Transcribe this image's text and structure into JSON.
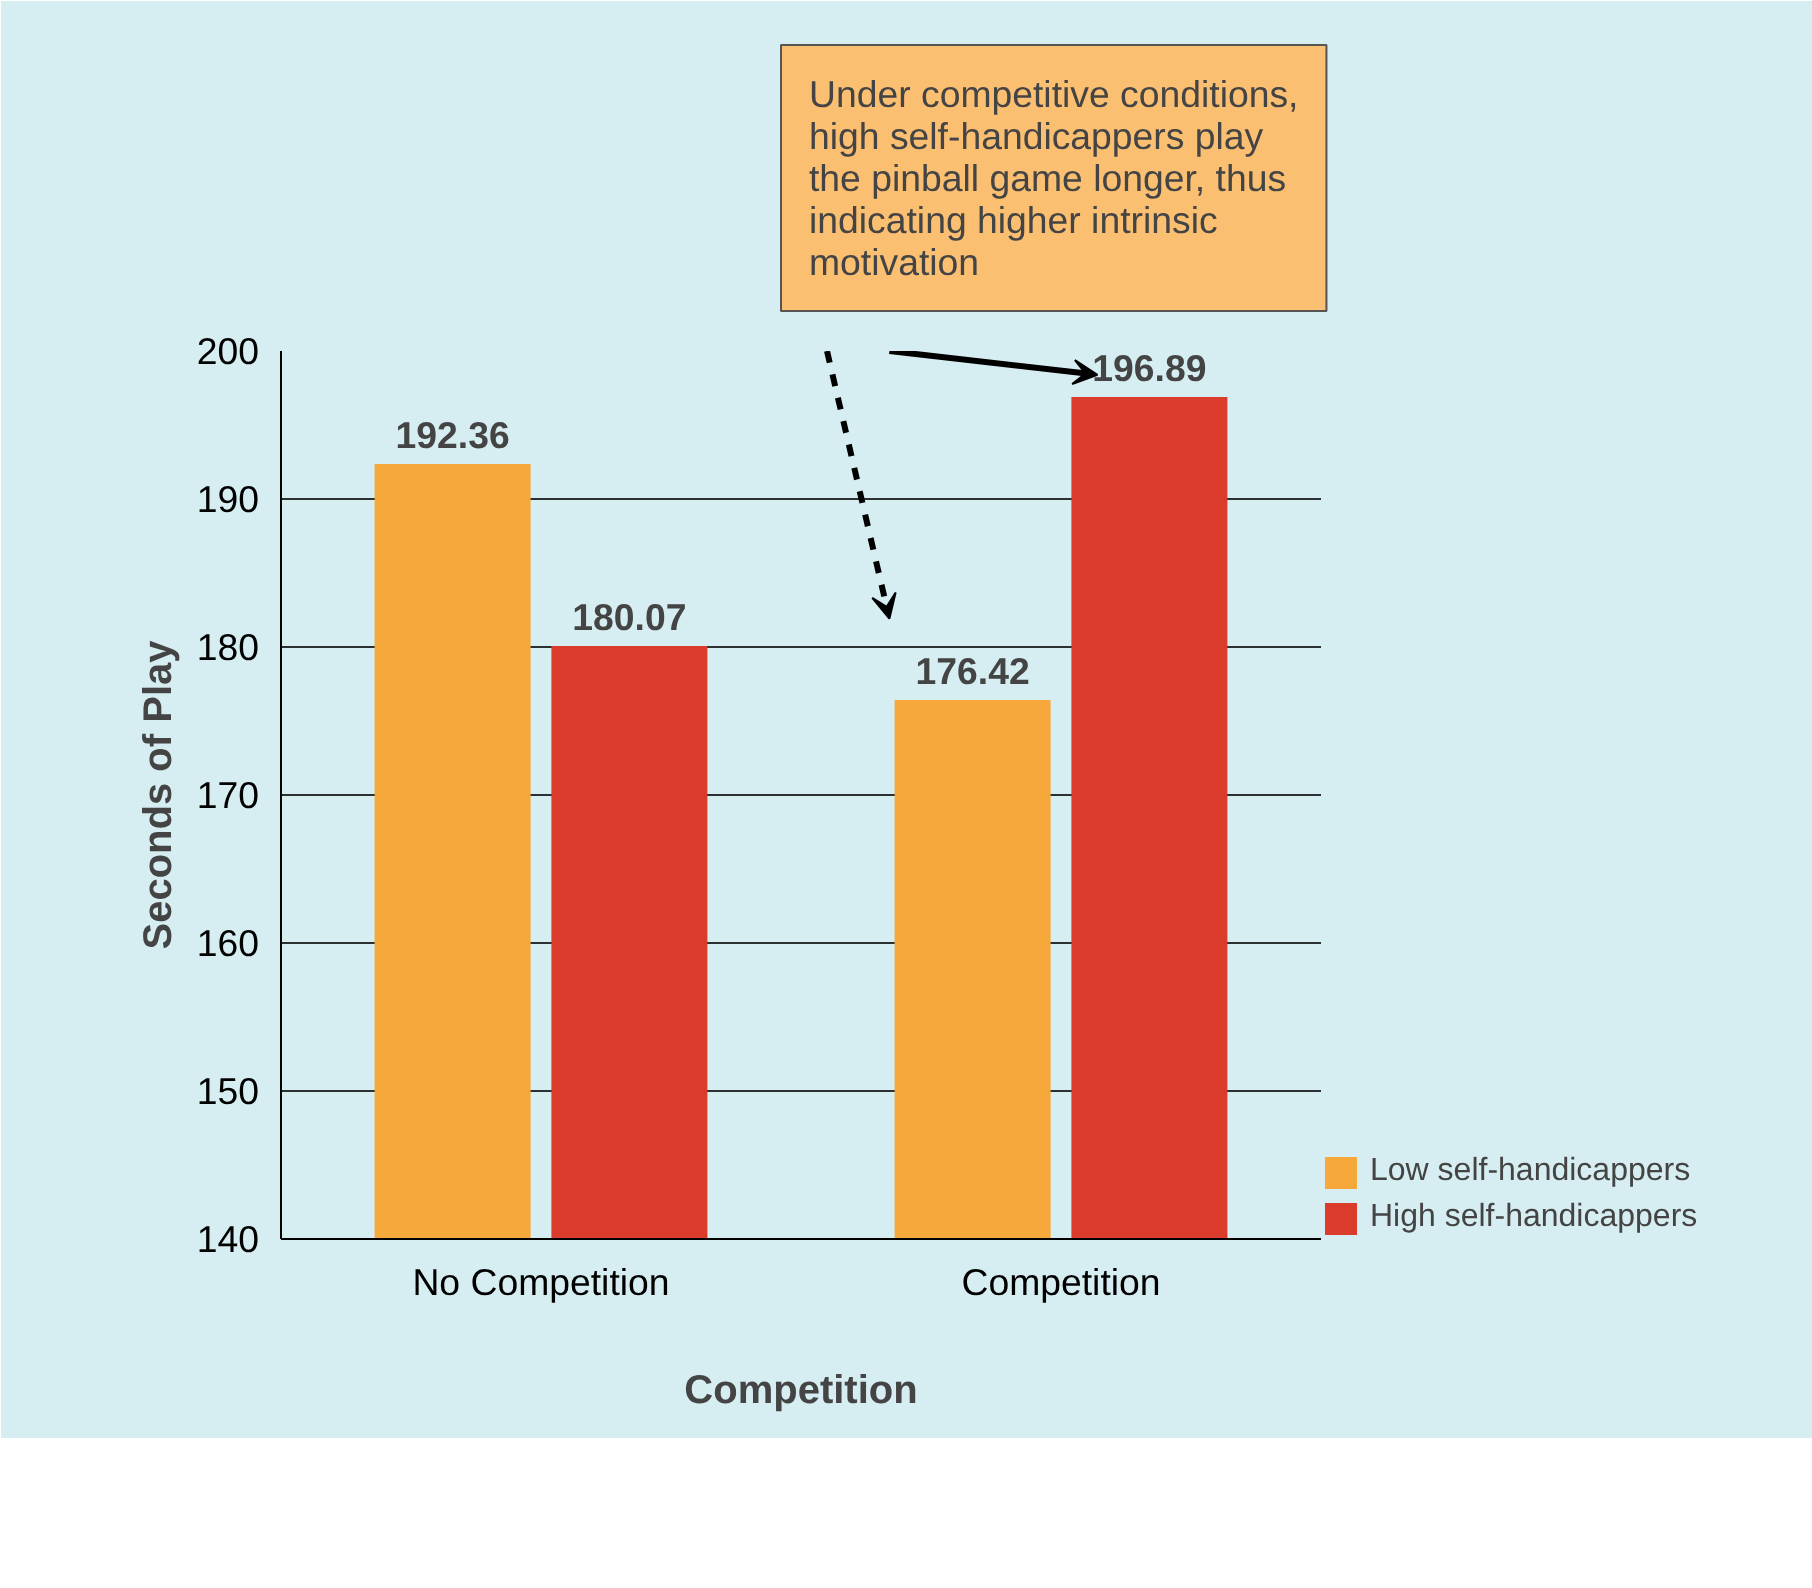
{
  "chart_data": {
    "type": "bar",
    "xlabel": "Competition",
    "ylabel": "Seconds of Play",
    "categories": [
      "No Competition",
      "Competition"
    ],
    "series": [
      {
        "name": "Low self-handicappers",
        "color": "#f7a83a",
        "values": [
          192.36,
          176.42
        ]
      },
      {
        "name": "High self-handicappers",
        "color": "#da3b2b",
        "values": [
          180.07,
          196.89
        ]
      }
    ],
    "ylim": [
      140,
      200
    ],
    "yticks": [
      140,
      150,
      160,
      170,
      180,
      190,
      200
    ],
    "grid": "y",
    "legend": "right",
    "data_labels": true,
    "annotations": [
      "Under competitive conditions,\nhigh self-handicappers play\nthe pinball game longer, thus\nindicating higher intrinsic\nmotivation"
    ]
  }
}
